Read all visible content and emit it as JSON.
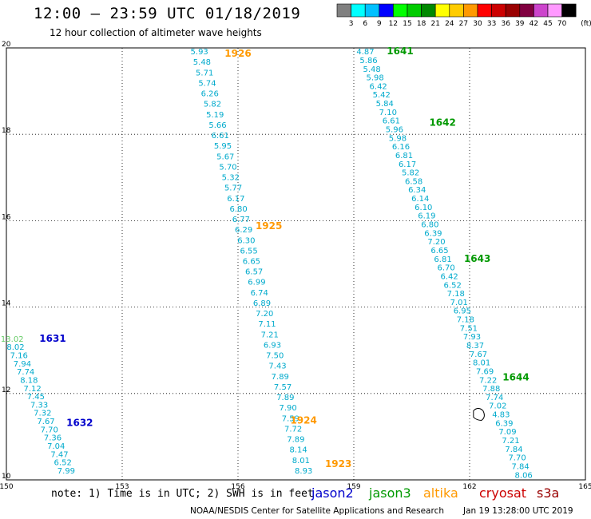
{
  "title": "12:00 – 23:59 UTC 01/18/2019",
  "subtitle": "12 hour collection of altimeter wave heights",
  "note": "note: 1) Time is in UTC; 2) SWH is in feet",
  "credit": "NOAA/NESDIS Center for Satellite Applications and Research",
  "timestamp": "Jan 19 13:28:00 UTC 2019",
  "colors": {
    "jason2": "#0000cc",
    "jason3": "#009900",
    "altika": "#ff9900",
    "cryosat": "#cc0000",
    "s3a": "#990000",
    "swh_cyan": "#00aacc",
    "swh_green": "#66cc66",
    "contour": "#000000"
  },
  "legend": {
    "unit": "(ft)",
    "bins": [
      {
        "label": "3",
        "color": "#808080"
      },
      {
        "label": "6",
        "color": "#00ffff"
      },
      {
        "label": "9",
        "color": "#00c0ff"
      },
      {
        "label": "12",
        "color": "#0000ff"
      },
      {
        "label": "15",
        "color": "#00ff00"
      },
      {
        "label": "18",
        "color": "#00cc00"
      },
      {
        "label": "21",
        "color": "#008800"
      },
      {
        "label": "24",
        "color": "#ffff00"
      },
      {
        "label": "27",
        "color": "#ffcc00"
      },
      {
        "label": "30",
        "color": "#ff9900"
      },
      {
        "label": "33",
        "color": "#ff0000"
      },
      {
        "label": "36",
        "color": "#cc0000"
      },
      {
        "label": "39",
        "color": "#990000"
      },
      {
        "label": "42",
        "color": "#800040"
      },
      {
        "label": "45",
        "color": "#cc44cc"
      },
      {
        "label": "70",
        "color": "#ff99ff"
      },
      {
        "label": "",
        "color": "#000000"
      }
    ]
  },
  "satellites": [
    {
      "name": "jason2",
      "color": "#0000cc"
    },
    {
      "name": "jason3",
      "color": "#009900"
    },
    {
      "name": "altika",
      "color": "#ff9900"
    },
    {
      "name": "cryosat",
      "color": "#cc0000"
    },
    {
      "name": "s3a",
      "color": "#990000"
    }
  ],
  "map": {
    "lon_range": [
      150,
      165
    ],
    "lat_range": [
      10,
      20
    ],
    "lon_ticks": [
      "150",
      "153",
      "156",
      "159",
      "162",
      "165"
    ],
    "lat_ticks": [
      "20",
      "18",
      "16",
      "14",
      "12",
      "10"
    ]
  },
  "tracks": [
    {
      "sat": "altika",
      "labels": [
        {
          "time": "1926",
          "lon": 156.0,
          "lat": 19.8
        },
        {
          "time": "1925",
          "lon": 156.8,
          "lat": 15.8
        },
        {
          "time": "1924",
          "lon": 157.7,
          "lat": 11.3
        },
        {
          "time": "1923",
          "lon": 158.6,
          "lat": 10.3
        }
      ],
      "start": [
        155.0,
        19.85
      ],
      "end": [
        157.7,
        10.15
      ],
      "values": [
        "5.93",
        "5.48",
        "5.71",
        "5.74",
        "6.26",
        "5.82",
        "5.19",
        "5.66",
        "6.61",
        "5.95",
        "5.67",
        "5.70",
        "5.32",
        "5.77",
        "6.17",
        "6.80",
        "6.77",
        "6.29",
        "6.30",
        "6.55",
        "6.65",
        "6.57",
        "6.99",
        "6.74",
        "6.89",
        "7.20",
        "7.11",
        "7.21",
        "6.93",
        "7.50",
        "7.43",
        "7.89",
        "7.57",
        "7.89",
        "7.90",
        "7.59",
        "7.72",
        "7.89",
        "8.14",
        "8.01",
        "8.93"
      ]
    },
    {
      "sat": "jason3",
      "labels": [
        {
          "time": "1641",
          "lon": 160.2,
          "lat": 19.85
        },
        {
          "time": "1642",
          "lon": 161.3,
          "lat": 18.2
        },
        {
          "time": "1643",
          "lon": 162.2,
          "lat": 15.05
        },
        {
          "time": "1644",
          "lon": 163.2,
          "lat": 12.3
        }
      ],
      "start": [
        159.3,
        19.85
      ],
      "end": [
        163.4,
        10.05
      ],
      "values": [
        "4.87",
        "5.86",
        "5.48",
        "5.98",
        "6.42",
        "5.42",
        "5.84",
        "7.10",
        "6.61",
        "5.96",
        "5.98",
        "6.16",
        "6.81",
        "6.17",
        "5.82",
        "6.58",
        "6.34",
        "6.14",
        "6.10",
        "6.19",
        "6.80",
        "6.39",
        "7.20",
        "6.65",
        "6.81",
        "6.70",
        "6.42",
        "6.52",
        "7.18",
        "7.01",
        "6.95",
        "7.18",
        "7.51",
        "7.93",
        "8.37",
        "7.67",
        "8.01",
        "7.69",
        "7.22",
        "7.88",
        "7.74",
        "7.02",
        "4.83",
        "6.39",
        "7.09",
        "7.21",
        "7.84",
        "7.70",
        "7.84",
        "8.06"
      ]
    },
    {
      "sat": "jason2",
      "labels": [
        {
          "time": "1631",
          "lon": 151.2,
          "lat": 13.2
        },
        {
          "time": "1632",
          "lon": 151.9,
          "lat": 11.25
        }
      ],
      "start": [
        150.15,
        13.2
      ],
      "end": [
        151.55,
        10.15
      ],
      "values": [
        "13.02",
        "8.02",
        "7.16",
        "7.94",
        "7.74",
        "8.18",
        "7.12",
        "7.45",
        "7.33",
        "7.32",
        "7.67",
        "7.70",
        "7.36",
        "7.04",
        "7.47",
        "6.52",
        "7.99"
      ]
    }
  ]
}
